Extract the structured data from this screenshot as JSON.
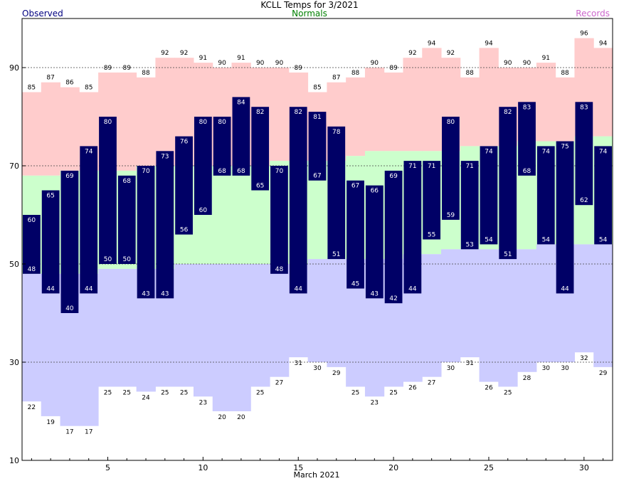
{
  "chart_data": {
    "type": "bar",
    "title": "KCLL Temps for 3/2021",
    "xlabel": "March 2021",
    "ylabel": "",
    "legend": {
      "observed": "Observed",
      "normals": "Normals",
      "records": "Records"
    },
    "ylim": [
      10,
      100
    ],
    "yticks": [
      10,
      30,
      50,
      70,
      90
    ],
    "xticks": [
      5,
      10,
      15,
      20,
      25,
      30
    ],
    "grid": "dotted horizontal at 30, 50, 70, 90",
    "days": [
      1,
      2,
      3,
      4,
      5,
      6,
      7,
      8,
      9,
      10,
      11,
      12,
      13,
      14,
      15,
      16,
      17,
      18,
      19,
      20,
      21,
      22,
      23,
      24,
      25,
      26,
      27,
      28,
      29,
      30,
      31
    ],
    "series": [
      {
        "name": "Records",
        "kind": "record_high",
        "values": [
          85,
          87,
          86,
          85,
          89,
          89,
          88,
          92,
          92,
          91,
          90,
          91,
          90,
          90,
          89,
          85,
          87,
          88,
          90,
          89,
          92,
          94,
          92,
          88,
          94,
          90,
          90,
          91,
          88,
          96,
          94
        ]
      },
      {
        "name": "Records",
        "kind": "record_low",
        "values": [
          22,
          19,
          17,
          17,
          25,
          25,
          24,
          25,
          25,
          23,
          20,
          20,
          25,
          27,
          31,
          30,
          29,
          25,
          23,
          25,
          26,
          27,
          30,
          31,
          26,
          25,
          28,
          30,
          30,
          32,
          29
        ]
      },
      {
        "name": "Normals",
        "kind": "normal_high",
        "values": [
          68,
          68,
          69,
          69,
          69,
          69,
          70,
          70,
          70,
          70,
          70,
          70,
          70,
          71,
          71,
          71,
          71,
          72,
          73,
          73,
          73,
          73,
          73,
          74,
          74,
          74,
          75,
          75,
          75,
          76,
          76
        ]
      },
      {
        "name": "Normals",
        "kind": "normal_low",
        "values": [
          48,
          48,
          48,
          48,
          49,
          49,
          49,
          49,
          50,
          50,
          50,
          50,
          50,
          50,
          50,
          51,
          51,
          51,
          51,
          51,
          52,
          52,
          53,
          53,
          53,
          53,
          53,
          54,
          54,
          54,
          54
        ]
      },
      {
        "name": "Observed",
        "kind": "observed_high",
        "values": [
          60,
          65,
          69,
          74,
          80,
          68,
          70,
          73,
          76,
          80,
          80,
          84,
          82,
          70,
          82,
          81,
          78,
          67,
          66,
          69,
          71,
          71,
          80,
          71,
          74,
          82,
          83,
          74,
          75,
          83,
          74
        ]
      },
      {
        "name": "Observed",
        "kind": "observed_low",
        "values": [
          48,
          44,
          40,
          44,
          50,
          50,
          43,
          43,
          56,
          60,
          68,
          68,
          65,
          48,
          44,
          67,
          51,
          45,
          43,
          42,
          44,
          55,
          59,
          53,
          54,
          51,
          68,
          54,
          44,
          62,
          54
        ]
      }
    ],
    "colors": {
      "observed": "#000066",
      "normals": "#ccffcc",
      "records_high": "#ffcccc",
      "records_low": "#ccccff",
      "legend_observed": "#000080",
      "legend_normals": "#008000",
      "legend_records": "#cc66cc"
    }
  }
}
